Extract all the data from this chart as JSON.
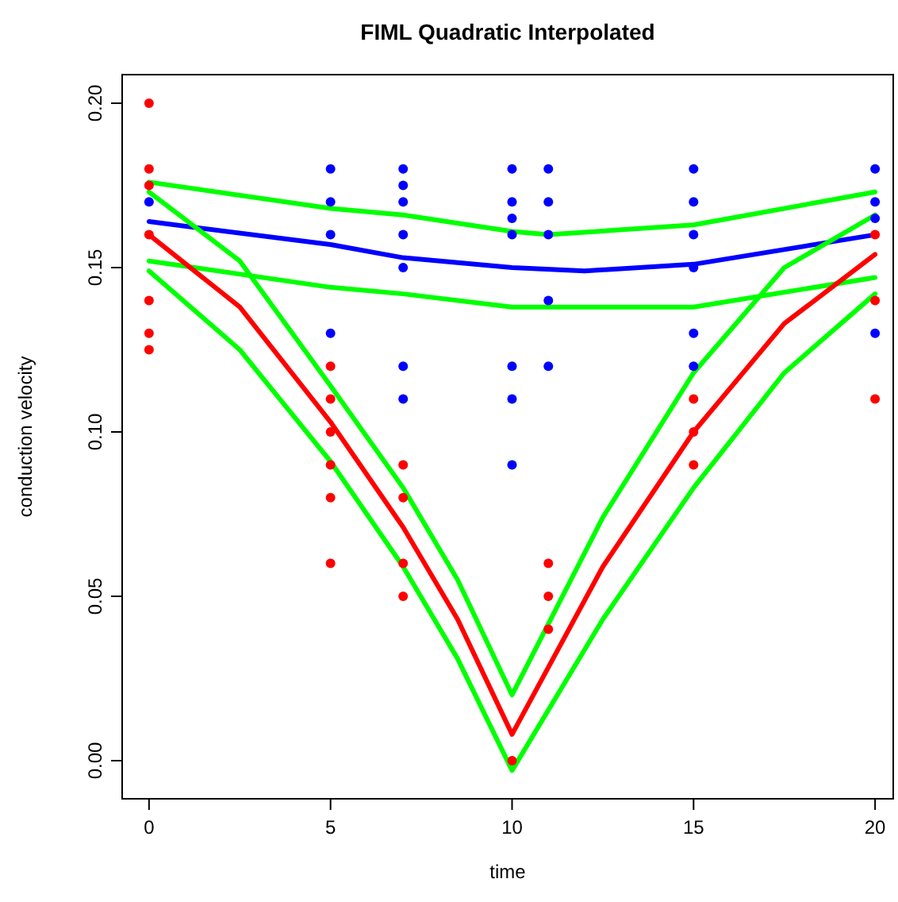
{
  "chart_data": {
    "type": "scatter",
    "title": "FIML Quadratic Interpolated",
    "xlabel": "time",
    "ylabel": "conduction velocity",
    "xlim": [
      -0.74,
      20.5
    ],
    "ylim": [
      -0.0116,
      0.2087
    ],
    "xticks": [
      0,
      5,
      10,
      15,
      20
    ],
    "yticks": [
      {
        "value": 0,
        "label": "0.00"
      },
      {
        "value": 0.05,
        "label": "0.05"
      },
      {
        "value": 0.1,
        "label": "0.10"
      },
      {
        "value": 0.15,
        "label": "0.15"
      },
      {
        "value": 0.2,
        "label": "0.20"
      }
    ],
    "grid": false,
    "line_style": "solid",
    "series": [
      {
        "marker": "circle",
        "color": "#0000ff",
        "x": [
          0,
          5,
          5,
          5,
          5,
          7,
          7,
          7,
          7,
          7,
          7,
          7,
          10,
          10,
          10,
          10,
          10,
          10,
          10,
          11,
          11,
          11,
          11,
          11,
          15,
          15,
          15,
          15,
          15,
          15,
          20,
          20,
          20,
          20
        ],
        "values": [
          0.17,
          0.18,
          0.17,
          0.16,
          0.13,
          0.18,
          0.175,
          0.17,
          0.16,
          0.15,
          0.12,
          0.11,
          0.18,
          0.17,
          0.165,
          0.16,
          0.12,
          0.11,
          0.09,
          0.18,
          0.17,
          0.16,
          0.14,
          0.12,
          0.18,
          0.17,
          0.16,
          0.15,
          0.13,
          0.12,
          0.18,
          0.17,
          0.165,
          0.13
        ]
      },
      {
        "marker": "circle",
        "color": "#ff0000",
        "x": [
          0,
          0,
          0,
          0,
          0,
          0,
          0,
          5,
          5,
          5,
          5,
          5,
          5,
          7,
          7,
          7,
          7,
          10,
          11,
          11,
          11,
          15,
          15,
          15,
          20,
          20,
          20
        ],
        "values": [
          0.2,
          0.18,
          0.175,
          0.16,
          0.14,
          0.13,
          0.125,
          0.12,
          0.11,
          0.1,
          0.09,
          0.08,
          0.06,
          0.09,
          0.08,
          0.06,
          0.05,
          0,
          0.06,
          0.05,
          0.04,
          0.11,
          0.1,
          0.09,
          0.16,
          0.14,
          0.11
        ]
      },
      {
        "type": "line",
        "color": "#00ff00",
        "x": [
          0,
          5,
          7,
          10,
          11,
          15,
          20
        ],
        "values": [
          0.176,
          0.168,
          0.166,
          0.161,
          0.16,
          0.163,
          0.173
        ]
      },
      {
        "type": "line",
        "color": "#00ff00",
        "x": [
          0,
          5,
          7,
          10,
          11,
          15,
          20
        ],
        "values": [
          0.152,
          0.144,
          0.142,
          0.138,
          0.138,
          0.138,
          0.147
        ]
      },
      {
        "type": "line",
        "color": "#0000ff",
        "x": [
          0,
          5,
          7,
          10,
          12,
          15,
          20
        ],
        "values": [
          0.164,
          0.157,
          0.153,
          0.15,
          0.149,
          0.151,
          0.16
        ]
      },
      {
        "type": "line",
        "color": "#00ff00",
        "x": [
          0,
          2.5,
          5,
          7,
          8.5,
          10,
          12.5,
          15,
          17.5,
          20
        ],
        "values": [
          0.173,
          0.152,
          0.114,
          0.083,
          0.055,
          0.02,
          0.074,
          0.118,
          0.15,
          0.166
        ]
      },
      {
        "type": "line",
        "color": "#ff0000",
        "x": [
          0,
          2.5,
          5,
          7,
          8.5,
          10,
          12.5,
          15,
          17.5,
          20
        ],
        "values": [
          0.16,
          0.138,
          0.103,
          0.071,
          0.043,
          0.008,
          0.059,
          0.1,
          0.133,
          0.154
        ]
      },
      {
        "type": "line",
        "color": "#00ff00",
        "x": [
          0,
          2.5,
          5,
          7,
          8.5,
          10,
          12.5,
          15,
          17.5,
          20
        ],
        "values": [
          0.149,
          0.125,
          0.091,
          0.059,
          0.031,
          -0.003,
          0.043,
          0.083,
          0.118,
          0.142
        ]
      }
    ]
  }
}
